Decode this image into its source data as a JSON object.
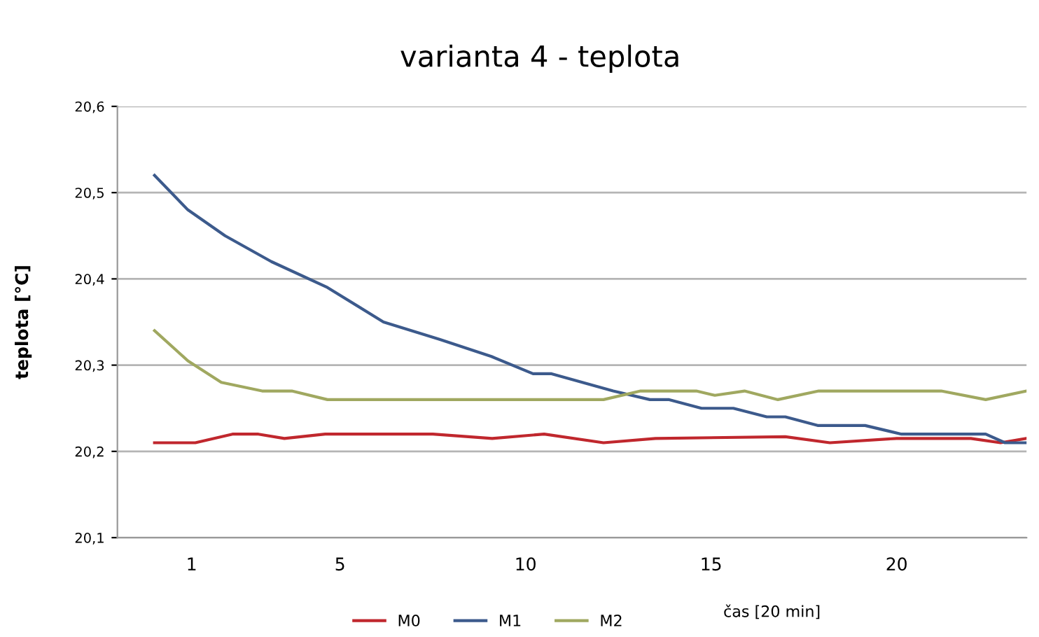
{
  "chart_data": {
    "type": "line",
    "title": "varianta 4 - teplota",
    "xlabel": "čas [20 min]",
    "ylabel": "teplota [°C]",
    "xlim": [
      -1,
      23.5
    ],
    "xticks": [
      1,
      5,
      10,
      15,
      20
    ],
    "ylim": [
      20.1,
      20.6
    ],
    "yticks": [
      {
        "value": 20.1,
        "label": "20,1"
      },
      {
        "value": 20.2,
        "label": "20,2"
      },
      {
        "value": 20.3,
        "label": "20,3"
      },
      {
        "value": 20.4,
        "label": "20,4"
      },
      {
        "value": 20.5,
        "label": "20,5"
      },
      {
        "value": 20.6,
        "label": "20,6"
      }
    ],
    "grid": "y",
    "legend": "bottom",
    "marker": "none",
    "line_style": "solid",
    "series": [
      {
        "name": "M0",
        "color": "#c0272d",
        "x": [
          0,
          1.1,
          2.1,
          2.8,
          3.5,
          4.6,
          7.5,
          9.1,
          10.5,
          12.1,
          13.5,
          17.0,
          18.2,
          20.0,
          22.0,
          22.8,
          23.5
        ],
        "values": [
          20.21,
          20.21,
          20.22,
          20.22,
          20.215,
          20.22,
          20.22,
          20.215,
          20.22,
          20.21,
          20.215,
          20.217,
          20.21,
          20.215,
          20.215,
          20.21,
          20.215
        ]
      },
      {
        "name": "M1",
        "color": "#3c5a8c",
        "x": [
          0,
          0.9,
          1.9,
          3.15,
          4.66,
          6.17,
          7.68,
          9.08,
          10.2,
          10.7,
          12.36,
          13.35,
          13.87,
          14.74,
          15.6,
          16.5,
          17.0,
          17.87,
          19.15,
          20.13,
          22.4,
          22.92,
          23.5
        ],
        "values": [
          20.52,
          20.48,
          20.45,
          20.42,
          20.39,
          20.35,
          20.33,
          20.31,
          20.29,
          20.29,
          20.27,
          20.26,
          20.26,
          20.25,
          20.25,
          20.24,
          20.24,
          20.23,
          20.23,
          20.22,
          20.22,
          20.21,
          20.21
        ]
      },
      {
        "name": "M2",
        "color": "#a0a860",
        "x": [
          0,
          0.9,
          1.8,
          2.9,
          3.7,
          4.66,
          12.1,
          13.1,
          14.6,
          15.1,
          15.9,
          16.8,
          17.9,
          21.2,
          22.4,
          23.5
        ],
        "values": [
          20.34,
          20.305,
          20.28,
          20.27,
          20.27,
          20.26,
          20.26,
          20.27,
          20.27,
          20.265,
          20.27,
          20.26,
          20.27,
          20.27,
          20.26,
          20.27
        ]
      }
    ]
  }
}
